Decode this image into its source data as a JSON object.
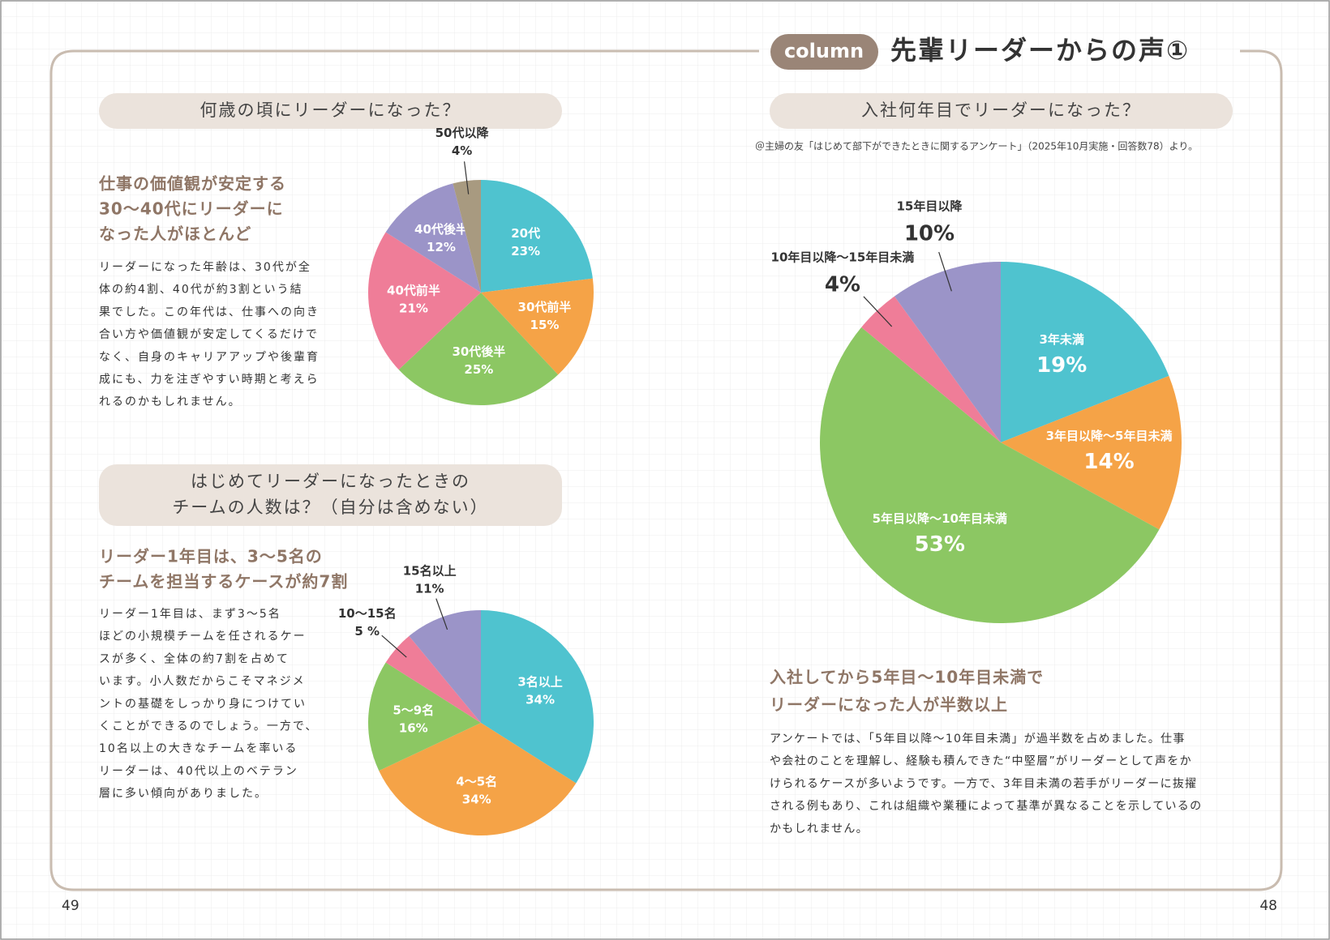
{
  "header": {
    "tag": "column",
    "title": "先輩リーダーからの声①"
  },
  "sections": [
    {
      "question": [
        "何歳の頃にリーダーになった？"
      ],
      "heading": [
        "仕事の価値観が安定する",
        "30〜40代にリーダーに",
        "なった人がほとんど"
      ],
      "body": [
        "リーダーになった年齢は、30代が全",
        "体の約4割、40代が約3割という結",
        "果でした。この年代は、仕事への向き",
        "合い方や価値観が安定してくるだけで",
        "なく、自身のキャリアアップや後輩育",
        "成にも、力を注ぎやすい時期と考えら",
        "れるのかもしれません。"
      ]
    },
    {
      "question": [
        "はじめてリーダーになったときの",
        "チームの人数は？（自分は含めない）"
      ],
      "heading": [
        "リーダー1年目は、3〜5名の",
        "チームを担当するケースが約7割"
      ],
      "body": [
        "リーダー1年目は、まず3〜5名",
        "ほどの小規模チームを任されるケー",
        "スが多く、全体の約7割を占めて",
        "います。小人数だからこそマネジメ",
        "ントの基礎をしっかり身につけてい",
        "くことができるのでしょう。一方で、",
        "10名以上の大きなチームを率いる",
        "リーダーは、40代以上のベテラン",
        "層に多い傾向がありました。"
      ]
    },
    {
      "question": [
        "入社何年目でリーダーになった？"
      ],
      "source": "＠主婦の友「はじめて部下ができたときに関するアンケート」（2025年10月実施・回答数78）より。",
      "heading": [
        "入社してから5年目〜10年目未満で",
        "リーダーになった人が半数以上"
      ],
      "body": [
        "アンケートでは、「5年目以降〜10年目未満」が過半数を占めました。仕事",
        "や会社のことを理解し、経験も積んできた“中堅層”がリーダーとして声をか",
        "けられるケースが多いようです。一方で、3年目未満の若手がリーダーに抜擢",
        "される例もあり、これは組織や業種によって基準が異なることを示しているの",
        "かもしれません。"
      ]
    }
  ],
  "chart_data": [
    {
      "type": "pie",
      "categories": [
        "20代",
        "30代前半",
        "30代後半",
        "40代前半",
        "40代後半",
        "50代以降"
      ],
      "values": [
        23,
        15,
        25,
        21,
        12,
        4
      ],
      "value_labels": [
        "23%",
        "15%",
        "25%",
        "21%",
        "12%",
        "4%"
      ],
      "colors": [
        "#4fc3cf",
        "#f5a347",
        "#8cc763",
        "#ef7d98",
        "#9b94c8",
        "#a89a80"
      ]
    },
    {
      "type": "pie",
      "categories": [
        "3名以上",
        "4〜5名",
        "5〜9名",
        "10〜15名",
        "15名以上"
      ],
      "values": [
        34,
        34,
        16,
        5,
        11
      ],
      "value_labels": [
        "34%",
        "34%",
        "16%",
        "5 %",
        "11%"
      ],
      "colors": [
        "#4fc3cf",
        "#f5a347",
        "#8cc763",
        "#ef7d98",
        "#9b94c8"
      ]
    },
    {
      "type": "pie",
      "categories": [
        "3年未満",
        "3年目以降〜5年目未満",
        "5年目以降〜10年目未満",
        "10年目以降〜15年目未満",
        "15年目以降"
      ],
      "values": [
        19,
        14,
        53,
        4,
        10
      ],
      "value_labels": [
        "19%",
        "14%",
        "53%",
        "4%",
        "10%"
      ],
      "colors": [
        "#4fc3cf",
        "#f5a347",
        "#8cc763",
        "#ef7d98",
        "#9b94c8"
      ]
    }
  ],
  "page_numbers": [
    "49",
    "48"
  ]
}
